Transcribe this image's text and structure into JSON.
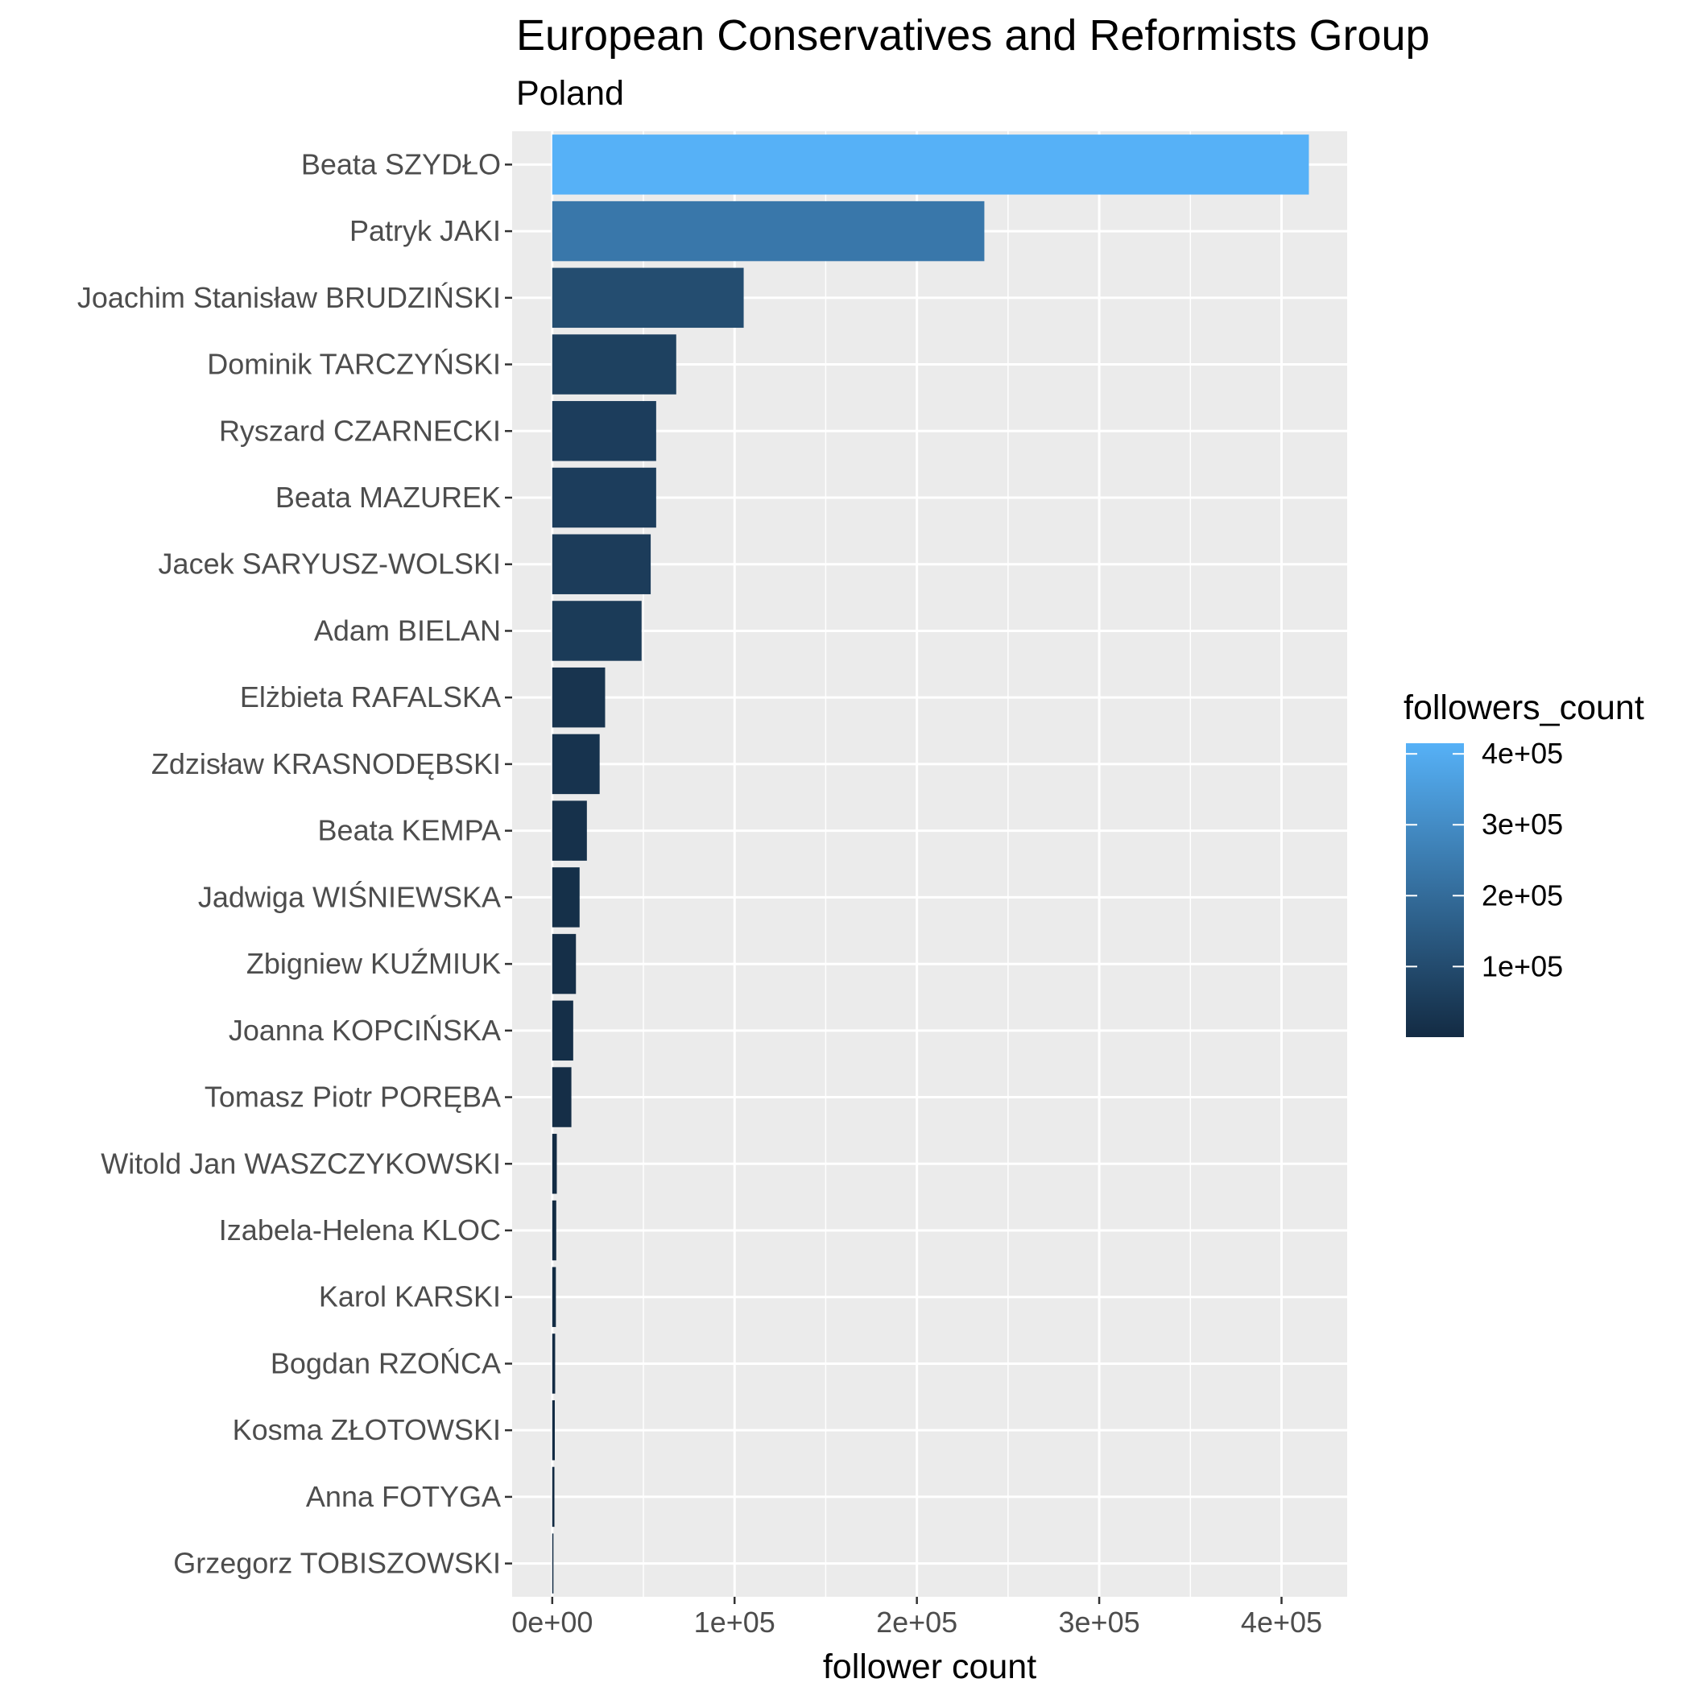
{
  "chart_data": {
    "type": "bar",
    "orientation": "horizontal",
    "title": "European Conservatives and Reformists Group",
    "subtitle": "Poland",
    "xlabel": "follower count",
    "ylabel": "",
    "xlim": [
      -22000,
      436000
    ],
    "x_ticks": [
      0,
      100000,
      200000,
      300000,
      400000
    ],
    "x_tick_labels": [
      "0e+00",
      "1e+05",
      "2e+05",
      "3e+05",
      "4e+05"
    ],
    "grid": true,
    "categories": [
      "Beata SZYDŁO",
      "Patryk JAKI",
      "Joachim Stanisław BRUDZIŃSKI",
      "Dominik TARCZYŃSKI",
      "Ryszard CZARNECKI",
      "Beata MAZUREK",
      "Jacek SARYUSZ-WOLSKI",
      "Adam BIELAN",
      "Elżbieta RAFALSKA",
      "Zdzisław KRASNODĘBSKI",
      "Beata KEMPA",
      "Jadwiga WIŚNIEWSKA",
      "Zbigniew KUŹMIUK",
      "Joanna KOPCIŃSKA",
      "Tomasz Piotr PORĘBA",
      "Witold Jan WASZCZYKOWSKI",
      "Izabela-Helena KLOC",
      "Karol KARSKI",
      "Bogdan RZOŃCA",
      "Kosma ZŁOTOWSKI",
      "Anna FOTYGA",
      "Grzegorz TOBISZOWSKI"
    ],
    "values": [
      415000,
      237000,
      105000,
      68000,
      57000,
      57000,
      54000,
      49000,
      29000,
      26000,
      19000,
      15000,
      13000,
      11500,
      10500,
      2500,
      2200,
      2000,
      1600,
      1400,
      1200,
      400
    ],
    "fill_scale": {
      "title": "followers_count",
      "low_color": "#132b43",
      "high_color": "#56b1f7",
      "range": [
        400,
        415000
      ],
      "breaks": [
        100000,
        200000,
        300000,
        400000
      ],
      "break_labels": [
        "1e+05",
        "2e+05",
        "3e+05",
        "4e+05"
      ]
    },
    "legend_position": "right"
  }
}
